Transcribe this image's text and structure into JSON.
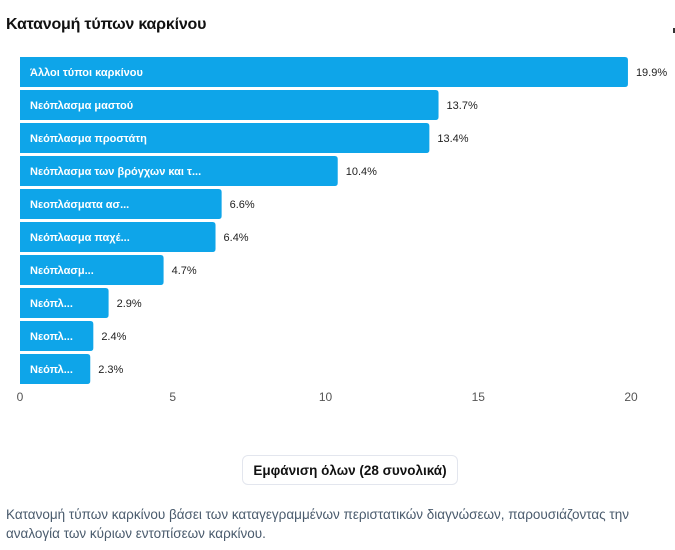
{
  "header": {
    "title": "Κατανομή τύπων καρκίνου"
  },
  "chart_data": {
    "type": "bar",
    "orientation": "horizontal",
    "title": "Κατανομή τύπων καρκίνου",
    "xlabel": "",
    "ylabel": "",
    "xlim": [
      0,
      20
    ],
    "x_ticks": [
      0,
      5,
      10,
      15,
      20
    ],
    "grid": false,
    "bar_color": "#0ea5e9",
    "categories": [
      "Άλλοι τύποι καρκίνου",
      "Νεόπλασμα μαστού",
      "Νεόπλασμα προστάτη",
      "Νεόπλασμα των βρόγχων και τ...",
      "Νεοπλάσματα ασ...",
      "Νεόπλασμα παχέ...",
      "Νεόπλασμ...",
      "Νεόπλ...",
      "Νεοπλ...",
      "Νεόπλ..."
    ],
    "values": [
      19.9,
      13.7,
      13.4,
      10.4,
      6.6,
      6.4,
      4.7,
      2.9,
      2.4,
      2.3
    ],
    "value_labels": [
      "19.9%",
      "13.7%",
      "13.4%",
      "10.4%",
      "6.6%",
      "6.4%",
      "4.7%",
      "2.9%",
      "2.4%",
      "2.3%"
    ]
  },
  "actions": {
    "show_all_label": "Εμφάνιση όλων (28 συνολικά)"
  },
  "description": "Κατανομή τύπων καρκίνου βάσει των καταγεγραμμένων περιστατικών διαγνώσεων, παρουσιάζοντας την αναλογία των κύριων εντοπίσεων καρκίνου."
}
